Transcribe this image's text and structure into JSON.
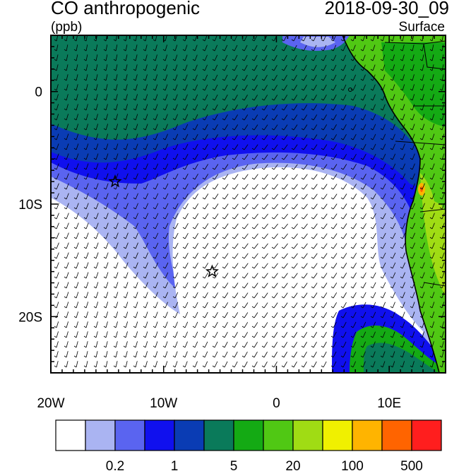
{
  "title": "CO anthropogenic",
  "units": "(ppb)",
  "datetime": "2018-09-30_09",
  "level": "Surface",
  "map": {
    "lon_range": [
      -20,
      15
    ],
    "lat_range": [
      -25,
      5
    ],
    "lon_ticks": [
      {
        "value": -20,
        "label": "20W"
      },
      {
        "value": -10,
        "label": "10W"
      },
      {
        "value": 0,
        "label": "0"
      },
      {
        "value": 10,
        "label": "10E"
      }
    ],
    "lat_ticks": [
      {
        "value": 0,
        "label": "0"
      },
      {
        "value": -10,
        "label": "10S"
      },
      {
        "value": -20,
        "label": "20S"
      }
    ],
    "markers": [
      {
        "name": "star",
        "lon": -14.3,
        "lat": -8.0
      },
      {
        "name": "star",
        "lon": -5.7,
        "lat": -16.0
      }
    ]
  },
  "colorbar": {
    "colors": [
      "#ffffff",
      "#aab4f2",
      "#5a64f0",
      "#1010ee",
      "#0a3cb4",
      "#0a7a5a",
      "#14aa14",
      "#50c814",
      "#a0dc14",
      "#f0f000",
      "#ffb400",
      "#ff6400",
      "#ff1e1e"
    ],
    "labels": [
      "0.2",
      "1",
      "5",
      "20",
      "100",
      "500"
    ]
  }
}
